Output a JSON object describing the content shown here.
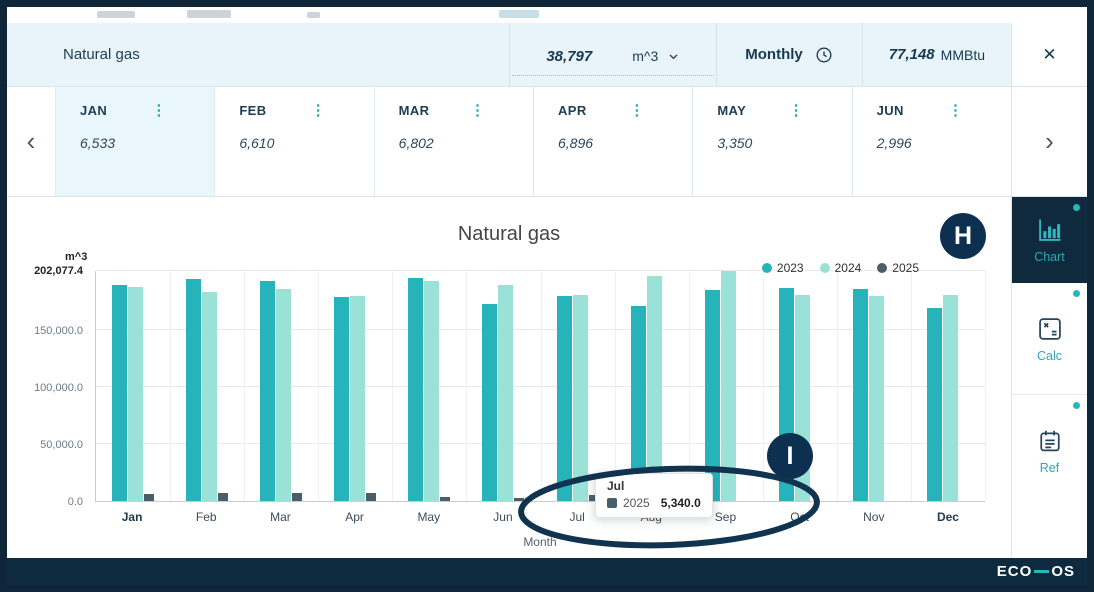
{
  "icons": {
    "close": "✕",
    "dots_menu": "⋮",
    "chevron_left": "‹",
    "chevron_right": "›"
  },
  "header": {
    "title": "Natural gas",
    "value": "38,797",
    "unit": "m^3",
    "frequency": "Monthly",
    "converted_value": "77,148",
    "converted_unit": "MMBtu"
  },
  "month_cards": {
    "items": [
      {
        "label": "JAN",
        "value": "6,533",
        "active": true
      },
      {
        "label": "FEB",
        "value": "6,610",
        "active": false
      },
      {
        "label": "MAR",
        "value": "6,802",
        "active": false
      },
      {
        "label": "APR",
        "value": "6,896",
        "active": false
      },
      {
        "label": "MAY",
        "value": "3,350",
        "active": false
      },
      {
        "label": "JUN",
        "value": "2,996",
        "active": false
      }
    ]
  },
  "chart_data": {
    "type": "bar",
    "title": "Natural gas",
    "y_axis_unit": "m^3",
    "xlabel": "Month",
    "categories": [
      "Jan",
      "Feb",
      "Mar",
      "Apr",
      "May",
      "Jun",
      "Jul",
      "Aug",
      "Sep",
      "Oct",
      "Nov",
      "Dec"
    ],
    "emphasized_categories": [
      "Jan",
      "Dec"
    ],
    "ylim": [
      0,
      202077.4
    ],
    "grid": true,
    "legend_position": "top-right",
    "y_ticks": [
      {
        "label": "202,077.4",
        "value": 202077.4
      },
      {
        "label": "150,000.0",
        "value": 150000
      },
      {
        "label": "100,000.0",
        "value": 100000
      },
      {
        "label": "50,000.0",
        "value": 50000
      },
      {
        "label": "0.0",
        "value": 0
      }
    ],
    "series": [
      {
        "name": "2023",
        "color": "#26b3ba",
        "values": [
          190000,
          195000,
          193000,
          179000,
          196000,
          173000,
          180000,
          171000,
          185000,
          187000,
          186000,
          170000
        ]
      },
      {
        "name": "2024",
        "color": "#9ae2d7",
        "values": [
          188000,
          184000,
          186000,
          180000,
          193000,
          190000,
          181000,
          198000,
          202077.4,
          181000,
          180000,
          181000
        ]
      },
      {
        "name": "2025",
        "color": "#4a5f6b",
        "values": [
          6533,
          6610,
          6802,
          6896,
          3350,
          2996,
          5340,
          0,
          0,
          0,
          0,
          0
        ]
      }
    ],
    "tooltip": {
      "category": "Jul",
      "series": "2025",
      "value": "5,340.0"
    }
  },
  "sidebar": {
    "items": [
      {
        "label": "Chart",
        "active": true
      },
      {
        "label": "Calc",
        "active": false
      },
      {
        "label": "Ref",
        "active": false
      }
    ]
  },
  "annotations": {
    "badge_h": "H",
    "badge_i": "I"
  },
  "footer": {
    "logo_prefix": "ECO",
    "logo_suffix": "OS"
  }
}
